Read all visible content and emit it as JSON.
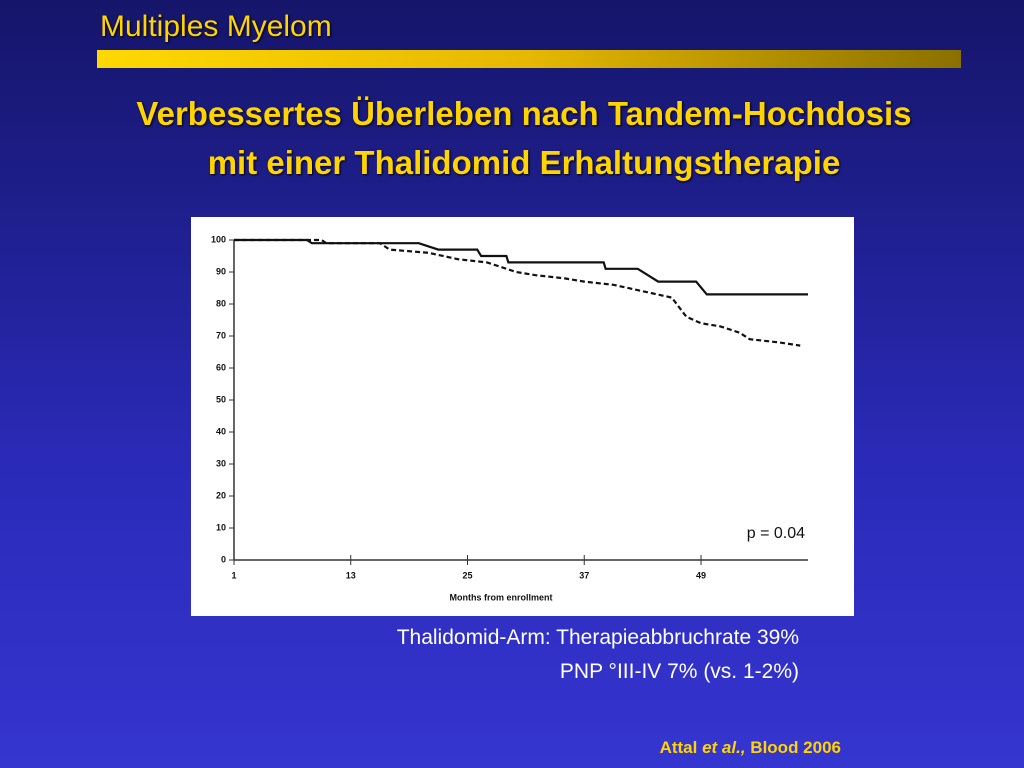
{
  "header": {
    "title": "Multiples Myelom"
  },
  "headline": [
    "Verbessertes Überleben nach Tandem-Hochdosis",
    "mit einer Thalidomid Erhaltungstherapie"
  ],
  "chart_data": {
    "type": "line",
    "x_label": "Months from enrollment",
    "annotation": "p = 0.04",
    "xlim": [
      1,
      60
    ],
    "ylim": [
      0,
      100
    ],
    "xticks": [
      1,
      13,
      25,
      37,
      49
    ],
    "yticks": [
      0,
      10,
      20,
      30,
      40,
      50,
      60,
      70,
      80,
      90,
      100
    ],
    "series": [
      {
        "color": "#111111",
        "style": "solid",
        "x": [
          1,
          8.5,
          9,
          20,
          21,
          22,
          26,
          26.4,
          29,
          29.2,
          39,
          39.2,
          42.5,
          44.6,
          48.5,
          49.6,
          60
        ],
        "values": [
          100,
          100,
          99,
          99,
          98,
          97,
          97,
          95,
          95,
          93,
          93,
          91,
          91,
          87,
          87,
          83,
          83
        ]
      },
      {
        "color": "#111111",
        "style": "dashed",
        "x": [
          1,
          10,
          10.5,
          16,
          17,
          21,
          24,
          27,
          29,
          30,
          32,
          35,
          37,
          40,
          43,
          46,
          47,
          47.5,
          49,
          51,
          53,
          54,
          57,
          59.2
        ],
        "values": [
          100,
          100,
          99,
          99,
          97,
          96,
          94,
          93,
          91,
          90,
          89,
          88,
          87,
          86,
          84,
          82,
          78,
          76,
          74,
          73,
          71,
          69,
          68,
          67
        ]
      }
    ]
  },
  "notes": [
    "Thalidomid-Arm: Therapieabbruchrate 39%",
    "PNP °III-IV 7% (vs. 1-2%)"
  ],
  "citation": {
    "author": "Attal",
    "etal": "et al.,",
    "source": "Blood 2006"
  }
}
